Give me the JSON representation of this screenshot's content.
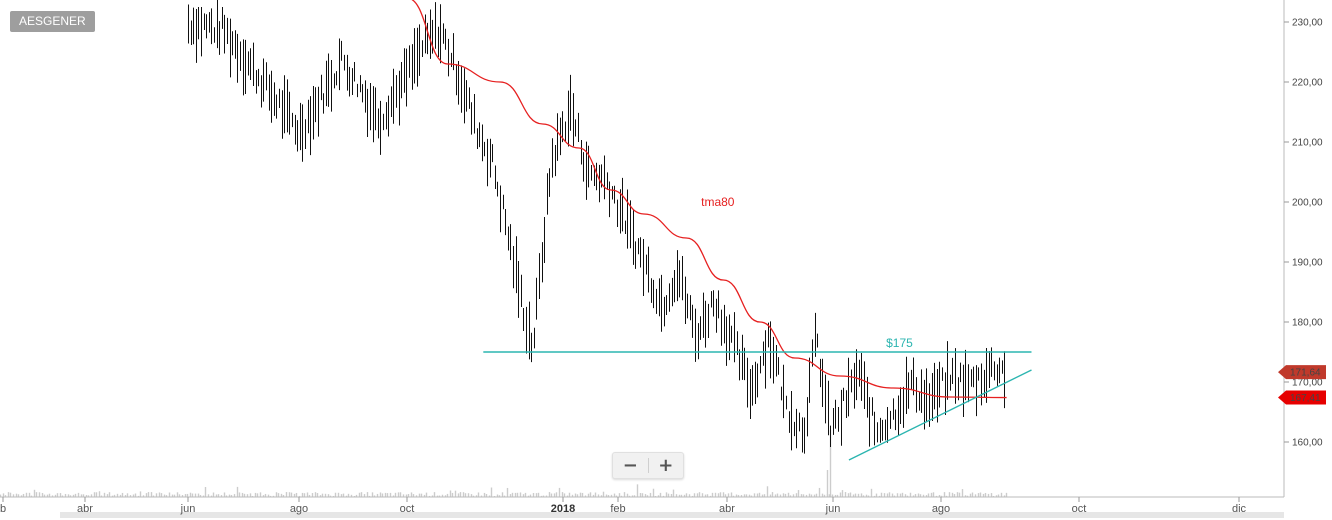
{
  "symbol": "AESGENER",
  "zoom": {
    "minus_label": "−",
    "plus_label": "+"
  },
  "chart_data": {
    "type": "ohlc-bar",
    "title": "AESGENER",
    "ylim": [
      151,
      233
    ],
    "y_ticks": [
      "160,00",
      "170,00",
      "180,00",
      "190,00",
      "200,00",
      "210,00",
      "220,00",
      "230,00"
    ],
    "x_ticks": [
      "b",
      "abr",
      "jun",
      "ago",
      "oct",
      "2018",
      "feb",
      "abr",
      "jun",
      "ago",
      "oct",
      "dic"
    ],
    "price_series": [
      {
        "date": "2017-06-01",
        "value": 230
      },
      {
        "date": "2017-06-20",
        "value": 229
      },
      {
        "date": "2017-08-01",
        "value": 212
      },
      {
        "date": "2017-08-10",
        "value": 216
      },
      {
        "date": "2017-08-25",
        "value": 224
      },
      {
        "date": "2017-09-05",
        "value": 219
      },
      {
        "date": "2017-09-15",
        "value": 214
      },
      {
        "date": "2017-09-30",
        "value": 221
      },
      {
        "date": "2017-10-10",
        "value": 226
      },
      {
        "date": "2017-10-20",
        "value": 229
      },
      {
        "date": "2017-11-01",
        "value": 221
      },
      {
        "date": "2017-11-10",
        "value": 213
      },
      {
        "date": "2017-11-20",
        "value": 207
      },
      {
        "date": "2017-11-30",
        "value": 194
      },
      {
        "date": "2017-12-08",
        "value": 183
      },
      {
        "date": "2017-12-14",
        "value": 176
      },
      {
        "date": "2017-12-25",
        "value": 207
      },
      {
        "date": "2018-01-05",
        "value": 216
      },
      {
        "date": "2018-01-15",
        "value": 205
      },
      {
        "date": "2018-01-25",
        "value": 204
      },
      {
        "date": "2018-02-05",
        "value": 197
      },
      {
        "date": "2018-02-15",
        "value": 190
      },
      {
        "date": "2018-02-25",
        "value": 183
      },
      {
        "date": "2018-03-05",
        "value": 189
      },
      {
        "date": "2018-03-15",
        "value": 178
      },
      {
        "date": "2018-03-25",
        "value": 184
      },
      {
        "date": "2018-04-05",
        "value": 176
      },
      {
        "date": "2018-04-15",
        "value": 169
      },
      {
        "date": "2018-04-25",
        "value": 178
      },
      {
        "date": "2018-05-05",
        "value": 166
      },
      {
        "date": "2018-05-15",
        "value": 162
      },
      {
        "date": "2018-05-22",
        "value": 178
      },
      {
        "date": "2018-05-30",
        "value": 162
      },
      {
        "date": "2018-06-05",
        "value": 165
      },
      {
        "date": "2018-06-15",
        "value": 172
      },
      {
        "date": "2018-06-25",
        "value": 162
      },
      {
        "date": "2018-07-05",
        "value": 165
      },
      {
        "date": "2018-07-15",
        "value": 170
      },
      {
        "date": "2018-07-25",
        "value": 167
      },
      {
        "date": "2018-08-05",
        "value": 171
      },
      {
        "date": "2018-08-15",
        "value": 170
      },
      {
        "date": "2018-08-25",
        "value": 173
      },
      {
        "date": "2018-08-30",
        "value": 171.64
      }
    ],
    "tma_series": [
      {
        "date": "2017-10-01",
        "value": 234
      },
      {
        "date": "2017-10-25",
        "value": 223
      },
      {
        "date": "2017-11-25",
        "value": 220
      },
      {
        "date": "2017-12-20",
        "value": 213
      },
      {
        "date": "2018-01-10",
        "value": 209
      },
      {
        "date": "2018-01-28",
        "value": 202
      },
      {
        "date": "2018-02-15",
        "value": 198
      },
      {
        "date": "2018-03-10",
        "value": 194
      },
      {
        "date": "2018-03-30",
        "value": 187
      },
      {
        "date": "2018-04-20",
        "value": 180
      },
      {
        "date": "2018-05-10",
        "value": 174
      },
      {
        "date": "2018-06-05",
        "value": 171
      },
      {
        "date": "2018-07-05",
        "value": 169
      },
      {
        "date": "2018-08-05",
        "value": 167.5
      },
      {
        "date": "2018-08-30",
        "value": 167.41
      }
    ],
    "resistance": {
      "value": 175,
      "label": "$175",
      "from": "2017-11-15",
      "to": "2018-09-10"
    },
    "support_trendline": {
      "from": {
        "date": "2018-06-10",
        "value": 157
      },
      "to": {
        "date": "2018-09-10",
        "value": 172
      }
    },
    "annotations": {
      "tma_label": "tma80"
    },
    "last_price": {
      "value": 171.64,
      "label": "171,64",
      "color": "#c0392b"
    },
    "tma_value": {
      "value": 167.41,
      "label": "167,41",
      "color": "#e60000"
    },
    "colors": {
      "price": "#111111",
      "tma": "#e62020",
      "resistance": "#2bb5b0",
      "support": "#2bb5b0",
      "volume": "#cccccc"
    },
    "volume_spike": {
      "date": "2018-05-30"
    }
  }
}
